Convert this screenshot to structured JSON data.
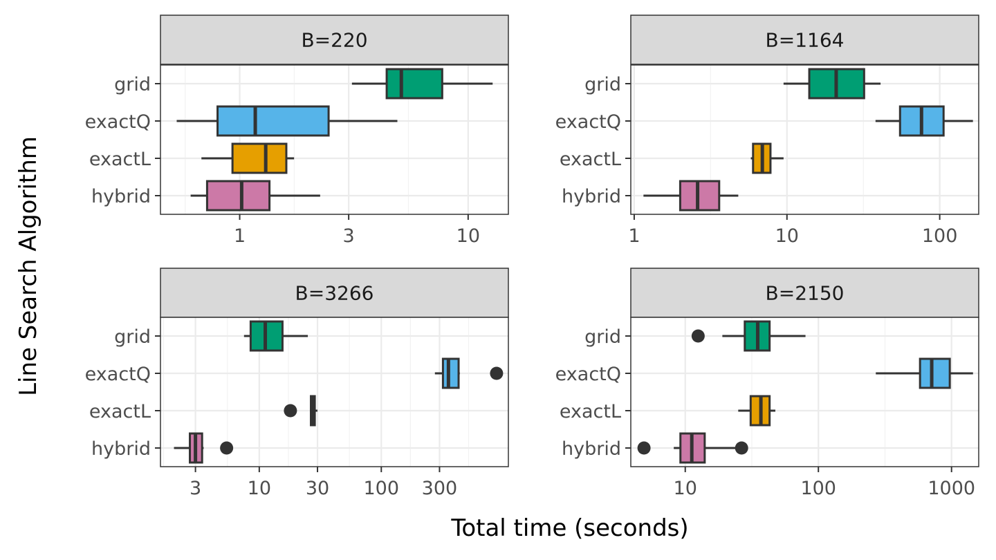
{
  "chart_data": {
    "type": "boxplot",
    "xlabel": "Total time (seconds)",
    "ylabel": "Line Search Algorithm",
    "x_scale": "log10",
    "categories": [
      "grid",
      "exactQ",
      "exactL",
      "hybrid"
    ],
    "colors": {
      "grid": "#009e73",
      "exactQ": "#56b4e9",
      "exactL": "#e69f00",
      "hybrid": "#cc79a7"
    },
    "panels": [
      {
        "title": "B=220",
        "xlim": [
          0.45,
          15
        ],
        "ticks": [
          1,
          3,
          10
        ],
        "tick_labels": [
          "1",
          "3",
          "10"
        ],
        "boxes": [
          {
            "category": "grid",
            "whisker_low": 3.1,
            "q1": 4.4,
            "median": 5.1,
            "q3": 7.7,
            "whisker_high": 12.8,
            "outliers": []
          },
          {
            "category": "exactQ",
            "whisker_low": 0.53,
            "q1": 0.8,
            "median": 1.17,
            "q3": 2.45,
            "whisker_high": 4.9,
            "outliers": []
          },
          {
            "category": "exactL",
            "whisker_low": 0.68,
            "q1": 0.93,
            "median": 1.3,
            "q3": 1.6,
            "whisker_high": 1.73,
            "outliers": []
          },
          {
            "category": "hybrid",
            "whisker_low": 0.61,
            "q1": 0.72,
            "median": 1.02,
            "q3": 1.35,
            "whisker_high": 2.25,
            "outliers": []
          }
        ]
      },
      {
        "title": "B=1164",
        "xlim": [
          0.95,
          180
        ],
        "ticks": [
          1,
          10,
          100
        ],
        "tick_labels": [
          "1",
          "10",
          "100"
        ],
        "boxes": [
          {
            "category": "grid",
            "whisker_low": 9.5,
            "q1": 14,
            "median": 21,
            "q3": 32,
            "whisker_high": 41,
            "outliers": []
          },
          {
            "category": "exactQ",
            "whisker_low": 38,
            "q1": 55,
            "median": 76,
            "q3": 106,
            "whisker_high": 165,
            "outliers": []
          },
          {
            "category": "exactL",
            "whisker_low": 5.8,
            "q1": 6.0,
            "median": 6.9,
            "q3": 7.8,
            "whisker_high": 9.5,
            "outliers": []
          },
          {
            "category": "hybrid",
            "whisker_low": 1.15,
            "q1": 2.0,
            "median": 2.6,
            "q3": 3.6,
            "whisker_high": 4.8,
            "outliers": []
          }
        ]
      },
      {
        "title": "B=3266",
        "xlim": [
          1.55,
          1100
        ],
        "ticks": [
          3,
          10,
          30,
          100,
          300
        ],
        "tick_labels": [
          "3",
          "10",
          "30",
          "100",
          "300"
        ],
        "boxes": [
          {
            "category": "grid",
            "whisker_low": 7.5,
            "q1": 8.5,
            "median": 11.2,
            "q3": 15.5,
            "whisker_high": 25,
            "outliers": []
          },
          {
            "category": "exactQ",
            "whisker_low": 275,
            "q1": 320,
            "median": 355,
            "q3": 430,
            "whisker_high": 440,
            "outliers": [
              880
            ]
          },
          {
            "category": "exactL",
            "whisker_low": 26,
            "q1": 26.5,
            "median": 27.5,
            "q3": 28.5,
            "whisker_high": 30,
            "outliers": [
              18
            ]
          },
          {
            "category": "hybrid",
            "whisker_low": 2.0,
            "q1": 2.7,
            "median": 3.0,
            "q3": 3.4,
            "whisker_high": 3.5,
            "outliers": [
              5.4
            ]
          }
        ]
      },
      {
        "title": "B=2150",
        "xlim": [
          3.9,
          1600
        ],
        "ticks": [
          10,
          100,
          1000
        ],
        "tick_labels": [
          "10",
          "100",
          "1000"
        ],
        "boxes": [
          {
            "category": "grid",
            "whisker_low": 19,
            "q1": 28,
            "median": 35,
            "q3": 43,
            "whisker_high": 80,
            "outliers": [
              12.5
            ]
          },
          {
            "category": "exactQ",
            "whisker_low": 270,
            "q1": 580,
            "median": 710,
            "q3": 970,
            "whisker_high": 1450,
            "outliers": []
          },
          {
            "category": "exactL",
            "whisker_low": 25,
            "q1": 31,
            "median": 37,
            "q3": 43,
            "whisker_high": 47.5,
            "outliers": []
          },
          {
            "category": "hybrid",
            "whisker_low": 8.2,
            "q1": 9.2,
            "median": 11.2,
            "q3": 14,
            "whisker_high": 26.5,
            "outliers": [
              4.9,
              26.5
            ]
          }
        ]
      }
    ]
  }
}
